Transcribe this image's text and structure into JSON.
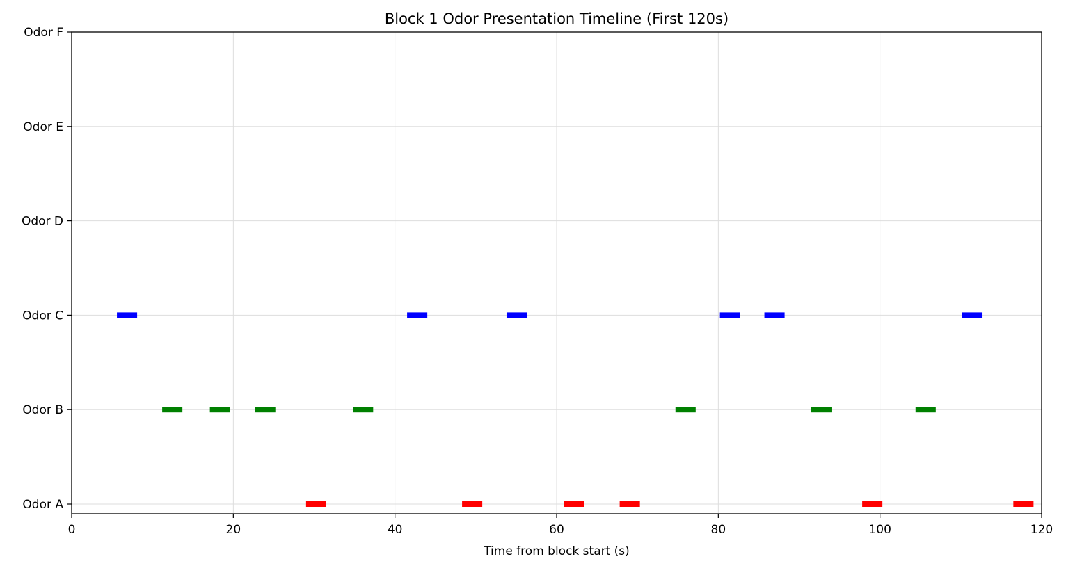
{
  "chart_data": {
    "type": "timeline",
    "title": "Block 1 Odor Presentation Timeline (First 120s)",
    "xlabel": "Time from block start (s)",
    "ylabel": "",
    "xlim": [
      0,
      120
    ],
    "x_ticks": [
      0,
      20,
      40,
      60,
      80,
      100,
      120
    ],
    "categories": [
      "Odor A",
      "Odor B",
      "Odor C",
      "Odor D",
      "Odor E",
      "Odor F"
    ],
    "grid": true,
    "series": [
      {
        "category": "Odor A",
        "color": "#ff0000",
        "intervals": [
          [
            29.0,
            31.5
          ],
          [
            48.3,
            50.8
          ],
          [
            60.9,
            63.4
          ],
          [
            67.8,
            70.3
          ],
          [
            97.8,
            100.3
          ],
          [
            116.5,
            119.0
          ]
        ]
      },
      {
        "category": "Odor B",
        "color": "#008000",
        "intervals": [
          [
            11.2,
            13.7
          ],
          [
            17.1,
            19.6
          ],
          [
            22.7,
            25.2
          ],
          [
            34.8,
            37.3
          ],
          [
            74.7,
            77.2
          ],
          [
            91.5,
            94.0
          ],
          [
            104.4,
            106.9
          ]
        ]
      },
      {
        "category": "Odor C",
        "color": "#0000ff",
        "intervals": [
          [
            5.6,
            8.1
          ],
          [
            41.5,
            44.0
          ],
          [
            53.8,
            56.3
          ],
          [
            80.2,
            82.7
          ],
          [
            85.7,
            88.2
          ],
          [
            110.1,
            112.6
          ]
        ]
      },
      {
        "category": "Odor D",
        "color": "#000000",
        "intervals": []
      },
      {
        "category": "Odor E",
        "color": "#000000",
        "intervals": []
      },
      {
        "category": "Odor F",
        "color": "#000000",
        "intervals": []
      }
    ]
  }
}
